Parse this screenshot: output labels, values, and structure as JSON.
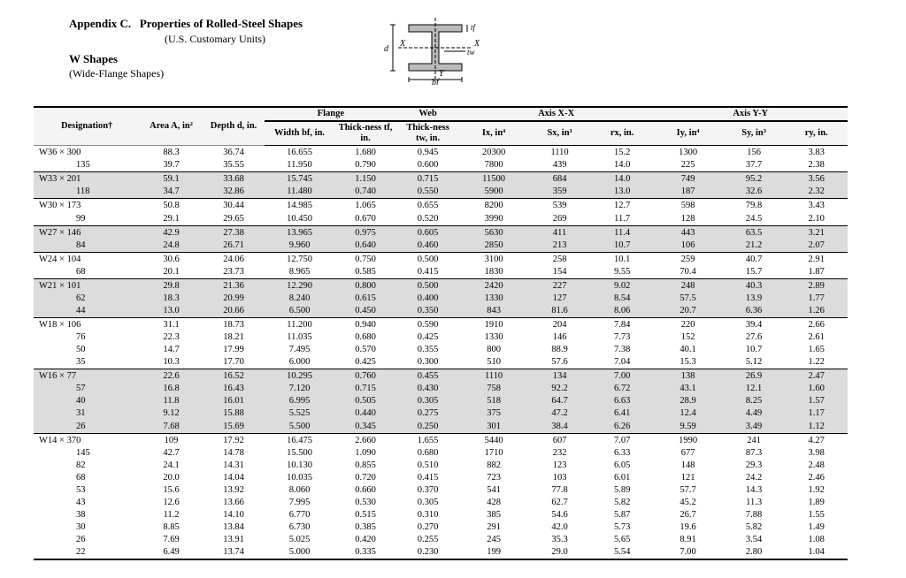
{
  "header": {
    "appendix_label": "Appendix C.",
    "title": "Properties of Rolled-Steel Shapes",
    "units": "(U.S. Customary Units)",
    "subtitle": "W Shapes",
    "subtitle2": "(Wide-Flange Shapes)"
  },
  "figure_labels": {
    "d": "d",
    "x_left": "X",
    "x_right": "X",
    "tf": "tf",
    "tw": "tw",
    "y": "Y",
    "bf": "bf"
  },
  "table": {
    "super_headers": {
      "flange": "Flange",
      "web": "Web",
      "axis_xx": "Axis X-X",
      "axis_yy": "Axis Y-Y"
    },
    "columns": [
      "Designation†",
      "Area A, in²",
      "Depth d, in.",
      "Width bf, in.",
      "Thick-ness tf, in.",
      "Thick-ness tw, in.",
      "Ix, in⁴",
      "Sx, in³",
      "rx, in.",
      "Iy, in⁴",
      "Sy, in³",
      "ry, in."
    ],
    "groups": [
      {
        "shaded": false,
        "rows": [
          [
            "W36 × 300",
            "88.3",
            "36.74",
            "16.655",
            "1.680",
            "0.945",
            "20300",
            "1110",
            "15.2",
            "1300",
            "156",
            "3.83"
          ],
          [
            "135",
            "39.7",
            "35.55",
            "11.950",
            "0.790",
            "0.600",
            "7800",
            "439",
            "14.0",
            "225",
            "37.7",
            "2.38"
          ]
        ]
      },
      {
        "shaded": true,
        "rows": [
          [
            "W33 × 201",
            "59.1",
            "33.68",
            "15.745",
            "1.150",
            "0.715",
            "11500",
            "684",
            "14.0",
            "749",
            "95.2",
            "3.56"
          ],
          [
            "118",
            "34.7",
            "32.86",
            "11.480",
            "0.740",
            "0.550",
            "5900",
            "359",
            "13.0",
            "187",
            "32.6",
            "2.32"
          ]
        ]
      },
      {
        "shaded": false,
        "rows": [
          [
            "W30 × 173",
            "50.8",
            "30.44",
            "14.985",
            "1.065",
            "0.655",
            "8200",
            "539",
            "12.7",
            "598",
            "79.8",
            "3.43"
          ],
          [
            "99",
            "29.1",
            "29.65",
            "10.450",
            "0.670",
            "0.520",
            "3990",
            "269",
            "11.7",
            "128",
            "24.5",
            "2.10"
          ]
        ]
      },
      {
        "shaded": true,
        "rows": [
          [
            "W27 × 146",
            "42.9",
            "27.38",
            "13.965",
            "0.975",
            "0.605",
            "5630",
            "411",
            "11.4",
            "443",
            "63.5",
            "3.21"
          ],
          [
            "84",
            "24.8",
            "26.71",
            "9.960",
            "0.640",
            "0.460",
            "2850",
            "213",
            "10.7",
            "106",
            "21.2",
            "2.07"
          ]
        ]
      },
      {
        "shaded": false,
        "rows": [
          [
            "W24 × 104",
            "30.6",
            "24.06",
            "12.750",
            "0.750",
            "0.500",
            "3100",
            "258",
            "10.1",
            "259",
            "40.7",
            "2.91"
          ],
          [
            "68",
            "20.1",
            "23.73",
            "8.965",
            "0.585",
            "0.415",
            "1830",
            "154",
            "9.55",
            "70.4",
            "15.7",
            "1.87"
          ]
        ]
      },
      {
        "shaded": true,
        "rows": [
          [
            "W21 × 101",
            "29.8",
            "21.36",
            "12.290",
            "0.800",
            "0.500",
            "2420",
            "227",
            "9.02",
            "248",
            "40.3",
            "2.89"
          ],
          [
            "62",
            "18.3",
            "20.99",
            "8.240",
            "0.615",
            "0.400",
            "1330",
            "127",
            "8.54",
            "57.5",
            "13.9",
            "1.77"
          ],
          [
            "44",
            "13.0",
            "20.66",
            "6.500",
            "0.450",
            "0.350",
            "843",
            "81.6",
            "8.06",
            "20.7",
            "6.36",
            "1.26"
          ]
        ]
      },
      {
        "shaded": false,
        "rows": [
          [
            "W18 × 106",
            "31.1",
            "18.73",
            "11.200",
            "0.940",
            "0.590",
            "1910",
            "204",
            "7.84",
            "220",
            "39.4",
            "2.66"
          ],
          [
            "76",
            "22.3",
            "18.21",
            "11.035",
            "0.680",
            "0.425",
            "1330",
            "146",
            "7.73",
            "152",
            "27.6",
            "2.61"
          ],
          [
            "50",
            "14.7",
            "17.99",
            "7.495",
            "0.570",
            "0.355",
            "800",
            "88.9",
            "7.38",
            "40.1",
            "10.7",
            "1.65"
          ],
          [
            "35",
            "10.3",
            "17.70",
            "6.000",
            "0.425",
            "0.300",
            "510",
            "57.6",
            "7.04",
            "15.3",
            "5.12",
            "1.22"
          ]
        ]
      },
      {
        "shaded": true,
        "rows": [
          [
            "W16 × 77",
            "22.6",
            "16.52",
            "10.295",
            "0.760",
            "0.455",
            "1110",
            "134",
            "7.00",
            "138",
            "26.9",
            "2.47"
          ],
          [
            "57",
            "16.8",
            "16.43",
            "7.120",
            "0.715",
            "0.430",
            "758",
            "92.2",
            "6.72",
            "43.1",
            "12.1",
            "1.60"
          ],
          [
            "40",
            "11.8",
            "16.01",
            "6.995",
            "0.505",
            "0.305",
            "518",
            "64.7",
            "6.63",
            "28.9",
            "8.25",
            "1.57"
          ],
          [
            "31",
            "9.12",
            "15.88",
            "5.525",
            "0.440",
            "0.275",
            "375",
            "47.2",
            "6.41",
            "12.4",
            "4.49",
            "1.17"
          ],
          [
            "26",
            "7.68",
            "15.69",
            "5.500",
            "0.345",
            "0.250",
            "301",
            "38.4",
            "6.26",
            "9.59",
            "3.49",
            "1.12"
          ]
        ]
      },
      {
        "shaded": false,
        "rows": [
          [
            "W14 × 370",
            "109",
            "17.92",
            "16.475",
            "2.660",
            "1.655",
            "5440",
            "607",
            "7.07",
            "1990",
            "241",
            "4.27"
          ],
          [
            "145",
            "42.7",
            "14.78",
            "15.500",
            "1.090",
            "0.680",
            "1710",
            "232",
            "6.33",
            "677",
            "87.3",
            "3.98"
          ],
          [
            "82",
            "24.1",
            "14.31",
            "10.130",
            "0.855",
            "0.510",
            "882",
            "123",
            "6.05",
            "148",
            "29.3",
            "2.48"
          ],
          [
            "68",
            "20.0",
            "14.04",
            "10.035",
            "0.720",
            "0.415",
            "723",
            "103",
            "6.01",
            "121",
            "24.2",
            "2.46"
          ],
          [
            "53",
            "15.6",
            "13.92",
            "8.060",
            "0.660",
            "0.370",
            "541",
            "77.8",
            "5.89",
            "57.7",
            "14.3",
            "1.92"
          ],
          [
            "43",
            "12.6",
            "13.66",
            "7.995",
            "0.530",
            "0.305",
            "428",
            "62.7",
            "5.82",
            "45.2",
            "11.3",
            "1.89"
          ],
          [
            "38",
            "11.2",
            "14.10",
            "6.770",
            "0.515",
            "0.310",
            "385",
            "54.6",
            "5.87",
            "26.7",
            "7.88",
            "1.55"
          ],
          [
            "30",
            "8.85",
            "13.84",
            "6.730",
            "0.385",
            "0.270",
            "291",
            "42.0",
            "5.73",
            "19.6",
            "5.82",
            "1.49"
          ],
          [
            "26",
            "7.69",
            "13.91",
            "5.025",
            "0.420",
            "0.255",
            "245",
            "35.3",
            "5.65",
            "8.91",
            "3.54",
            "1.08"
          ],
          [
            "22",
            "6.49",
            "13.74",
            "5.000",
            "0.335",
            "0.230",
            "199",
            "29.0",
            "5.54",
            "7.00",
            "2.80",
            "1.04"
          ]
        ]
      }
    ]
  }
}
